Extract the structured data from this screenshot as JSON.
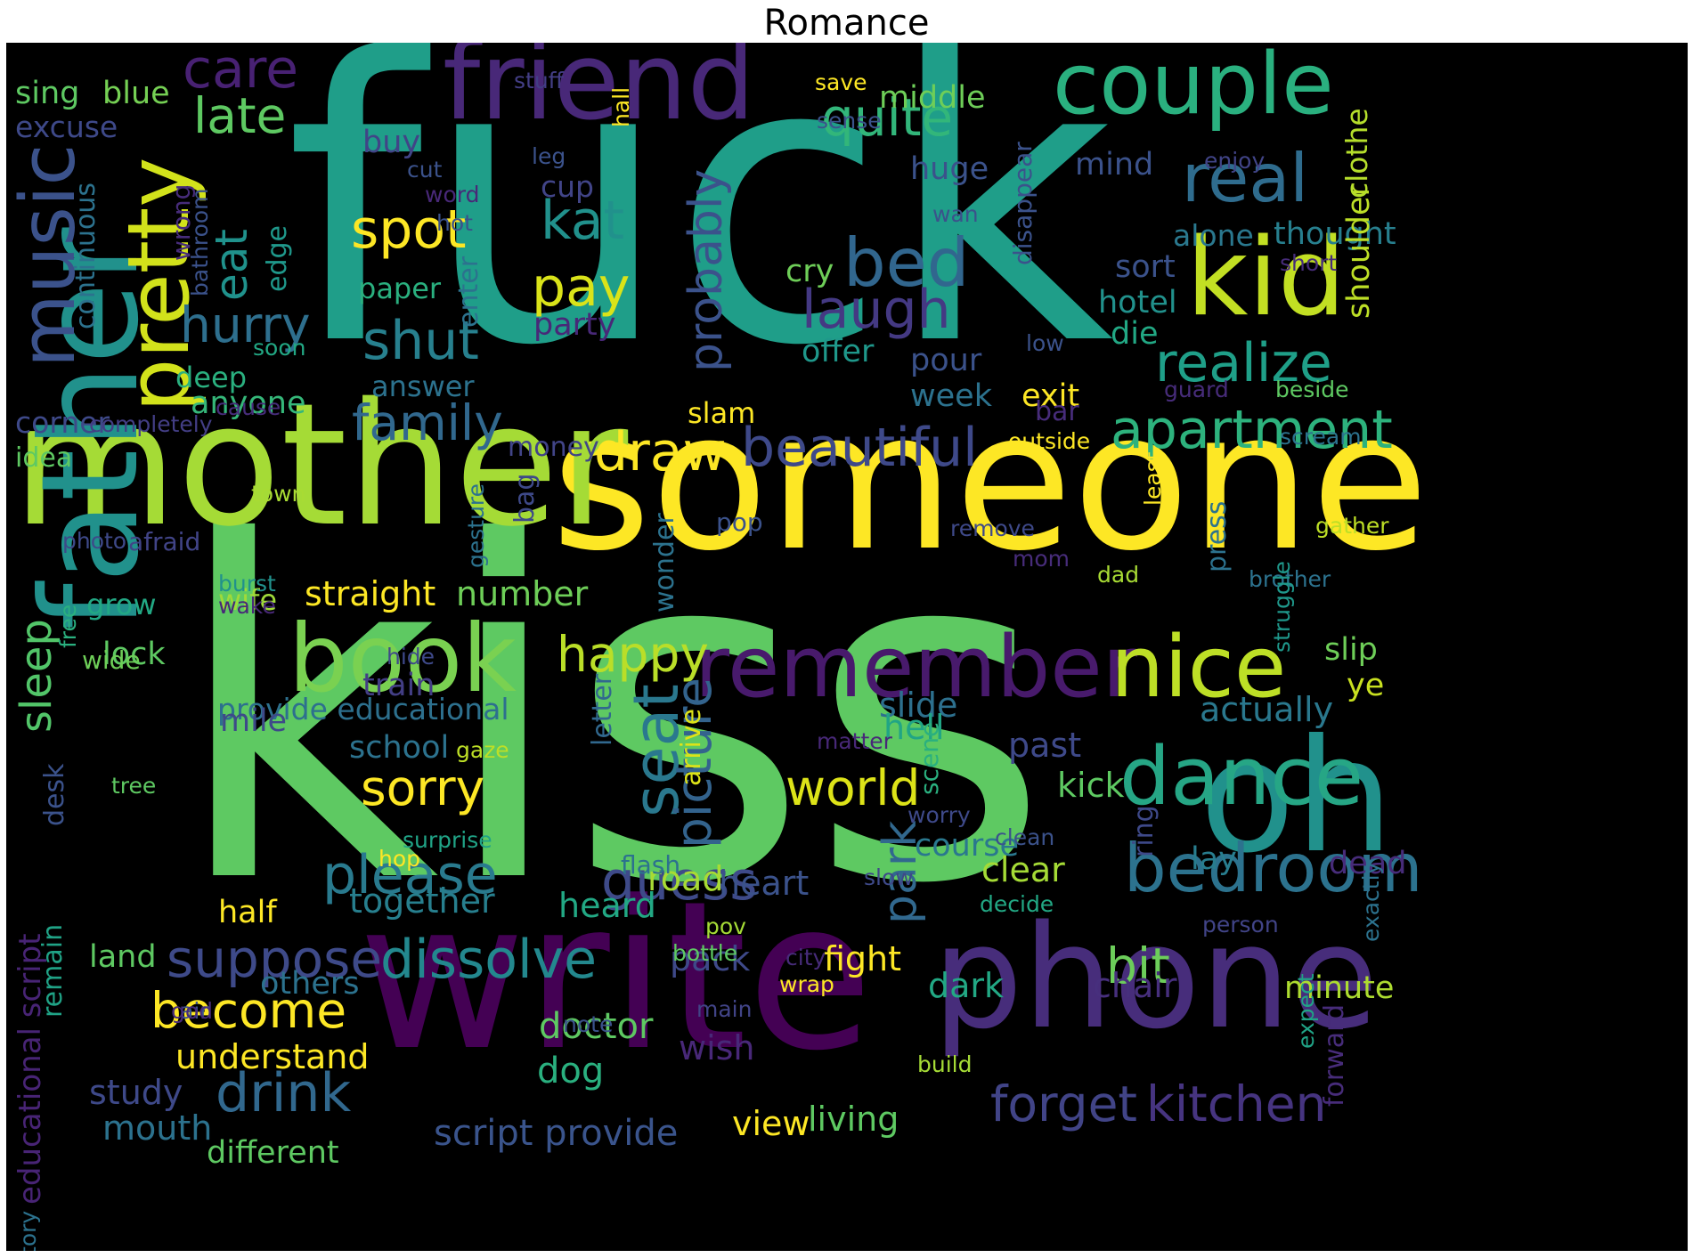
{
  "chart_data": {
    "type": "wordcloud",
    "title": "Romance",
    "palette": "viridis",
    "background": "#000000",
    "words": [
      {
        "text": "fuck",
        "color": "#1f9e89"
      },
      {
        "text": "kiss",
        "color": "#5ec962"
      },
      {
        "text": "someone",
        "color": "#fde725"
      },
      {
        "text": "mother",
        "color": "#a5db36"
      },
      {
        "text": "write",
        "color": "#440154"
      },
      {
        "text": "father",
        "color": "#21918c"
      },
      {
        "text": "phone",
        "color": "#472d7b"
      },
      {
        "text": "friend",
        "color": "#482878"
      },
      {
        "text": "couple",
        "color": "#2ab07f"
      },
      {
        "text": "kid",
        "color": "#c2df23"
      },
      {
        "text": "book",
        "color": "#7ad151"
      },
      {
        "text": "oh",
        "color": "#21918c"
      },
      {
        "text": "remember",
        "color": "#481a6c"
      },
      {
        "text": "pretty",
        "color": "#d2e21b"
      },
      {
        "text": "nice",
        "color": "#bddf26"
      },
      {
        "text": "dance",
        "color": "#26a685"
      },
      {
        "text": "music",
        "color": "#3b528b"
      },
      {
        "text": "bedroom",
        "color": "#2c728e"
      },
      {
        "text": "real",
        "color": "#2f6c8e"
      },
      {
        "text": "realize",
        "color": "#1f9f88"
      },
      {
        "text": "apartment",
        "color": "#2db27d"
      },
      {
        "text": "beautiful",
        "color": "#3e4989"
      },
      {
        "text": "bed",
        "color": "#31668e"
      },
      {
        "text": "quite",
        "color": "#32b67a"
      },
      {
        "text": "care",
        "color": "#482173"
      },
      {
        "text": "late",
        "color": "#5ec962"
      },
      {
        "text": "spot",
        "color": "#fde725"
      },
      {
        "text": "kat",
        "color": "#21918c"
      },
      {
        "text": "pay",
        "color": "#dae319"
      },
      {
        "text": "laugh",
        "color": "#443983"
      },
      {
        "text": "probably",
        "color": "#3b528b"
      },
      {
        "text": "shut",
        "color": "#27808e"
      },
      {
        "text": "hurry",
        "color": "#2e6f8e"
      },
      {
        "text": "eat",
        "color": "#20928c"
      },
      {
        "text": "family",
        "color": "#31688e"
      },
      {
        "text": "draw",
        "color": "#fde725"
      },
      {
        "text": "sleep",
        "color": "#52c569"
      },
      {
        "text": "seat",
        "color": "#2a788e"
      },
      {
        "text": "picture",
        "color": "#33638d"
      },
      {
        "text": "happy",
        "color": "#bade28"
      },
      {
        "text": "guess",
        "color": "#3e4a89"
      },
      {
        "text": "please",
        "color": "#297a8e"
      },
      {
        "text": "sorry",
        "color": "#fde725"
      },
      {
        "text": "world",
        "color": "#dde318"
      },
      {
        "text": "park",
        "color": "#31688e"
      },
      {
        "text": "dissolve",
        "color": "#23888e"
      },
      {
        "text": "suppose",
        "color": "#3e4a89"
      },
      {
        "text": "become",
        "color": "#fde725"
      },
      {
        "text": "drink",
        "color": "#31688e"
      },
      {
        "text": "bit",
        "color": "#6ccd5a"
      },
      {
        "text": "forget",
        "color": "#414487"
      },
      {
        "text": "kitchen",
        "color": "#463480"
      },
      {
        "text": "script provide",
        "color": "#3a548c"
      },
      {
        "text": "educational script",
        "color": "#482475"
      },
      {
        "text": "provide educational",
        "color": "#2d708e"
      },
      {
        "text": "straight",
        "color": "#fde725"
      },
      {
        "text": "number",
        "color": "#6ece58"
      },
      {
        "text": "understand",
        "color": "#fde725"
      },
      {
        "text": "doctor",
        "color": "#5ec962"
      },
      {
        "text": "wish",
        "color": "#482878"
      },
      {
        "text": "dog",
        "color": "#2ab07f"
      },
      {
        "text": "mouth",
        "color": "#2c728e"
      },
      {
        "text": "different",
        "color": "#5ec962"
      },
      {
        "text": "study",
        "color": "#3e4989"
      },
      {
        "text": "living",
        "color": "#5ec962"
      },
      {
        "text": "view",
        "color": "#fde725"
      },
      {
        "text": "together",
        "color": "#277f8e"
      },
      {
        "text": "heard",
        "color": "#22a884"
      },
      {
        "text": "road",
        "color": "#a8db34"
      },
      {
        "text": "heart",
        "color": "#3b528b"
      },
      {
        "text": "course",
        "color": "#2a788e"
      },
      {
        "text": "clear",
        "color": "#a5db36"
      },
      {
        "text": "kick",
        "color": "#5ec962"
      },
      {
        "text": "past",
        "color": "#3e4989"
      },
      {
        "text": "slide",
        "color": "#2d708e"
      },
      {
        "text": "hell",
        "color": "#21a585"
      },
      {
        "text": "lay",
        "color": "#287d8e"
      },
      {
        "text": "actually",
        "color": "#2a788e"
      },
      {
        "text": "slip",
        "color": "#6ece58"
      },
      {
        "text": "ye",
        "color": "#c8e020"
      },
      {
        "text": "dead",
        "color": "#472c7a"
      },
      {
        "text": "minute",
        "color": "#addc30"
      },
      {
        "text": "chair",
        "color": "#472f7d"
      },
      {
        "text": "dark",
        "color": "#22a884"
      },
      {
        "text": "fight",
        "color": "#fde725"
      },
      {
        "text": "pack",
        "color": "#3e4989"
      },
      {
        "text": "half",
        "color": "#fde725"
      },
      {
        "text": "land",
        "color": "#5ec962"
      },
      {
        "text": "others",
        "color": "#2c728e"
      },
      {
        "text": "remain",
        "color": "#20a386"
      },
      {
        "text": "desk",
        "color": "#3b528b"
      },
      {
        "text": "mile",
        "color": "#3e4a89"
      },
      {
        "text": "lock",
        "color": "#5ec962"
      },
      {
        "text": "grow",
        "color": "#22a884"
      },
      {
        "text": "wife",
        "color": "#a0da39"
      },
      {
        "text": "corner",
        "color": "#3e4989"
      },
      {
        "text": "idea",
        "color": "#5ec962"
      },
      {
        "text": "deep",
        "color": "#2ab07f"
      },
      {
        "text": "anyone",
        "color": "#35b779"
      },
      {
        "text": "answer",
        "color": "#2c728e"
      },
      {
        "text": "paper",
        "color": "#2ab07f"
      },
      {
        "text": "slam",
        "color": "#fde725"
      },
      {
        "text": "money",
        "color": "#414487"
      },
      {
        "text": "offer",
        "color": "#1f988b"
      },
      {
        "text": "cry",
        "color": "#6ece58"
      },
      {
        "text": "pour",
        "color": "#3b528b"
      },
      {
        "text": "week",
        "color": "#2c728e"
      },
      {
        "text": "exit",
        "color": "#fde725"
      },
      {
        "text": "hotel",
        "color": "#21918c"
      },
      {
        "text": "die",
        "color": "#22a884"
      },
      {
        "text": "sort",
        "color": "#3b528b"
      },
      {
        "text": "alone",
        "color": "#2a788e"
      },
      {
        "text": "thought",
        "color": "#277f8e"
      },
      {
        "text": "shoulder",
        "color": "#bddf26"
      },
      {
        "text": "clothe",
        "color": "#b5de2b"
      },
      {
        "text": "mind",
        "color": "#3b528b"
      },
      {
        "text": "huge",
        "color": "#3b528b"
      },
      {
        "text": "middle",
        "color": "#6ece58"
      },
      {
        "text": "sense",
        "color": "#3b528b"
      },
      {
        "text": "save",
        "color": "#fde725"
      },
      {
        "text": "stuff",
        "color": "#433e85"
      },
      {
        "text": "hall",
        "color": "#fde725"
      },
      {
        "text": "disappear",
        "color": "#3b528b"
      },
      {
        "text": "buy",
        "color": "#414487"
      },
      {
        "text": "cut",
        "color": "#3b528b"
      },
      {
        "text": "leg",
        "color": "#3b528b"
      },
      {
        "text": "word",
        "color": "#482878"
      },
      {
        "text": "hot",
        "color": "#3b528b"
      },
      {
        "text": "cup",
        "color": "#414487"
      },
      {
        "text": "wan",
        "color": "#3b528b"
      },
      {
        "text": "enjoy",
        "color": "#414487"
      },
      {
        "text": "sing",
        "color": "#5ec962"
      },
      {
        "text": "blue",
        "color": "#75d054"
      },
      {
        "text": "excuse",
        "color": "#3e4989"
      },
      {
        "text": "continuous",
        "color": "#2c728e"
      },
      {
        "text": "wrong",
        "color": "#472c7a"
      },
      {
        "text": "bathroom",
        "color": "#3b528b"
      },
      {
        "text": "edge",
        "color": "#1f988b"
      },
      {
        "text": "enter",
        "color": "#2c728e"
      },
      {
        "text": "party",
        "color": "#482878"
      },
      {
        "text": "soon",
        "color": "#22a884"
      },
      {
        "text": "cause",
        "color": "#472c7a"
      },
      {
        "text": "completely",
        "color": "#433e85"
      },
      {
        "text": "town",
        "color": "#a8db34"
      },
      {
        "text": "photo",
        "color": "#3e4989"
      },
      {
        "text": "afraid",
        "color": "#414487"
      },
      {
        "text": "gesture",
        "color": "#2c728e"
      },
      {
        "text": "bag",
        "color": "#3e4989"
      },
      {
        "text": "wonder",
        "color": "#2c728e"
      },
      {
        "text": "pop",
        "color": "#3b528b"
      },
      {
        "text": "burst",
        "color": "#21918c"
      },
      {
        "text": "wake",
        "color": "#482878"
      },
      {
        "text": "free",
        "color": "#2ab07f"
      },
      {
        "text": "wide",
        "color": "#6ece58"
      },
      {
        "text": "hide",
        "color": "#3e4989"
      },
      {
        "text": "train",
        "color": "#433e85"
      },
      {
        "text": "letter",
        "color": "#31688e"
      },
      {
        "text": "arrive",
        "color": "#dde318"
      },
      {
        "text": "school",
        "color": "#2c728e"
      },
      {
        "text": "gaze",
        "color": "#bddf26"
      },
      {
        "text": "tree",
        "color": "#5ec962"
      },
      {
        "text": "matter",
        "color": "#482878"
      },
      {
        "text": "scene",
        "color": "#2ab07f"
      },
      {
        "text": "worry",
        "color": "#3e4989"
      },
      {
        "text": "surprise",
        "color": "#20a386"
      },
      {
        "text": "hop",
        "color": "#fde725"
      },
      {
        "text": "flash",
        "color": "#2c728e"
      },
      {
        "text": "ring",
        "color": "#3e4989"
      },
      {
        "text": "clean",
        "color": "#3b528b"
      },
      {
        "text": "slow",
        "color": "#3e4989"
      },
      {
        "text": "decide",
        "color": "#22a884"
      },
      {
        "text": "person",
        "color": "#414487"
      },
      {
        "text": "expect",
        "color": "#20a386"
      },
      {
        "text": "exactly",
        "color": "#2c728e"
      },
      {
        "text": "forward",
        "color": "#472c7a"
      },
      {
        "text": "pov",
        "color": "#a5db36"
      },
      {
        "text": "bottle",
        "color": "#5ec962"
      },
      {
        "text": "city",
        "color": "#472c7a"
      },
      {
        "text": "wrap",
        "color": "#fde725"
      },
      {
        "text": "main",
        "color": "#414487"
      },
      {
        "text": "note",
        "color": "#3b528b"
      },
      {
        "text": "build",
        "color": "#a5db36"
      },
      {
        "text": "air",
        "color": "#3b528b"
      },
      {
        "text": "god",
        "color": "#472c7a"
      },
      {
        "text": "story",
        "color": "#2c728e"
      },
      {
        "text": "remove",
        "color": "#3e4989"
      },
      {
        "text": "mom",
        "color": "#472c7a"
      },
      {
        "text": "dad",
        "color": "#a8db34"
      },
      {
        "text": "brother",
        "color": "#2c728e"
      },
      {
        "text": "gather",
        "color": "#bddf26"
      },
      {
        "text": "struggle",
        "color": "#1f988b"
      },
      {
        "text": "press",
        "color": "#2c728e"
      },
      {
        "text": "least",
        "color": "#fde725"
      },
      {
        "text": "outside",
        "color": "#fde725"
      },
      {
        "text": "bar",
        "color": "#472c7a"
      },
      {
        "text": "scream",
        "color": "#2c728e"
      },
      {
        "text": "guard",
        "color": "#472c7a"
      },
      {
        "text": "beside",
        "color": "#5ec962"
      },
      {
        "text": "short",
        "color": "#472c7a"
      },
      {
        "text": "low",
        "color": "#3b528b"
      }
    ]
  }
}
